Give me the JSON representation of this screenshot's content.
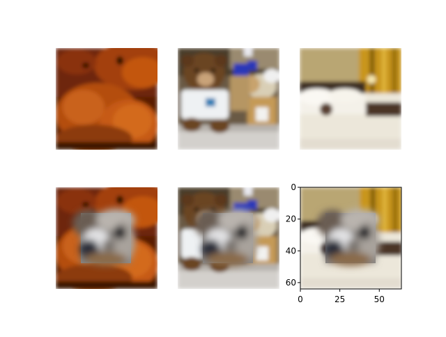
{
  "figure": {
    "panels": [
      {
        "row": 1,
        "col": 1,
        "content": "teddy bear close-up, orange tint"
      },
      {
        "row": 1,
        "col": 2,
        "content": "teddy bear in white shirt on table with jars"
      },
      {
        "row": 1,
        "col": 3,
        "content": "hotel bedroom with white bed"
      },
      {
        "row": 2,
        "col": 1,
        "content": "teddy bear close-up with blurred patch"
      },
      {
        "row": 2,
        "col": 2,
        "content": "teddy bear with blurred patch"
      },
      {
        "row": 2,
        "col": 3,
        "content": "hotel bedroom with blurred patch"
      }
    ],
    "axis": {
      "x_ticks": [
        "0",
        "25",
        "50"
      ],
      "y_ticks": [
        "0",
        "20",
        "40",
        "60"
      ],
      "x_range": [
        0,
        64
      ],
      "y_range": [
        0,
        64
      ]
    },
    "patch": {
      "x_start": 16,
      "x_end": 48,
      "y_start": 15,
      "y_end": 47
    },
    "colors": {
      "axis": "#000000",
      "background": "#ffffff"
    }
  }
}
